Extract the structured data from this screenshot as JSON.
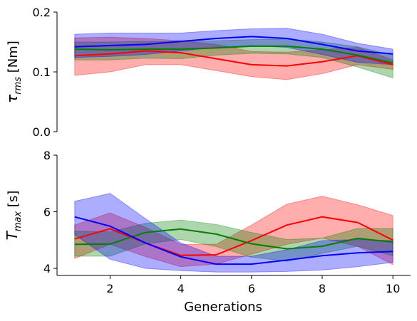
{
  "chart_data": [
    {
      "type": "line",
      "panel": "top",
      "ylabel_base": "τ",
      "ylabel_sub": "rms",
      "ylabel_unit": "[Nm]",
      "xlabel": "",
      "ylim": [
        0,
        0.2
      ],
      "yticks": [
        0,
        0.1,
        0.2
      ],
      "ytick_labels": [
        "0.0",
        "0.1",
        "0.2"
      ],
      "xlim": [
        0.5,
        10.5
      ],
      "x": [
        1,
        2,
        3,
        4,
        5,
        6,
        7,
        8,
        9,
        10
      ],
      "grid": false,
      "legend": "none",
      "series": [
        {
          "color": "#ff0000",
          "mean": [
            0.127,
            0.13,
            0.135,
            0.132,
            0.122,
            0.112,
            0.11,
            0.117,
            0.127,
            0.112
          ],
          "lower": [
            0.094,
            0.1,
            0.112,
            0.112,
            0.102,
            0.092,
            0.087,
            0.097,
            0.112,
            0.104
          ],
          "upper": [
            0.157,
            0.158,
            0.156,
            0.152,
            0.146,
            0.134,
            0.133,
            0.137,
            0.141,
            0.12
          ]
        },
        {
          "color": "#008000",
          "mean": [
            0.138,
            0.137,
            0.138,
            0.138,
            0.14,
            0.143,
            0.143,
            0.138,
            0.128,
            0.115
          ],
          "lower": [
            0.12,
            0.12,
            0.123,
            0.122,
            0.128,
            0.131,
            0.13,
            0.124,
            0.108,
            0.09
          ],
          "upper": [
            0.15,
            0.15,
            0.151,
            0.151,
            0.152,
            0.154,
            0.155,
            0.15,
            0.142,
            0.128
          ]
        },
        {
          "color": "#0000ff",
          "mean": [
            0.142,
            0.144,
            0.146,
            0.151,
            0.156,
            0.159,
            0.156,
            0.146,
            0.135,
            0.13
          ],
          "lower": [
            0.124,
            0.126,
            0.129,
            0.135,
            0.141,
            0.144,
            0.141,
            0.129,
            0.116,
            0.112
          ],
          "upper": [
            0.163,
            0.165,
            0.165,
            0.165,
            0.169,
            0.172,
            0.173,
            0.163,
            0.148,
            0.138
          ]
        }
      ]
    },
    {
      "type": "line",
      "panel": "bottom",
      "ylabel_base": "T",
      "ylabel_sub": "max",
      "ylabel_unit": "[s]",
      "xlabel": "Generations",
      "ylim": [
        3.75,
        8
      ],
      "yticks": [
        4,
        6,
        8
      ],
      "ytick_labels": [
        "4",
        "6",
        "8"
      ],
      "xlim": [
        0.5,
        10.5
      ],
      "xticks": [
        2,
        4,
        6,
        8,
        10
      ],
      "xtick_labels": [
        "2",
        "4",
        "6",
        "8",
        "10"
      ],
      "x": [
        1,
        2,
        3,
        4,
        5,
        6,
        7,
        8,
        9,
        10
      ],
      "grid": false,
      "legend": "none",
      "series": [
        {
          "color": "#ff0000",
          "mean": [
            5.04,
            5.4,
            4.9,
            4.46,
            4.48,
            4.98,
            5.53,
            5.82,
            5.62,
            5.0
          ],
          "lower": [
            4.35,
            4.85,
            4.42,
            4.06,
            4.15,
            4.5,
            4.85,
            5.07,
            4.78,
            4.13
          ],
          "upper": [
            5.53,
            5.96,
            5.45,
            4.85,
            4.85,
            5.53,
            6.27,
            6.55,
            6.25,
            5.87
          ]
        },
        {
          "color": "#008000",
          "mean": [
            4.85,
            4.86,
            5.27,
            5.39,
            5.21,
            4.87,
            4.69,
            4.78,
            5.06,
            4.93
          ],
          "lower": [
            4.43,
            4.43,
            4.87,
            5.02,
            4.77,
            4.4,
            4.25,
            4.53,
            4.78,
            4.45
          ],
          "upper": [
            5.31,
            5.29,
            5.59,
            5.71,
            5.55,
            5.27,
            5.02,
            5.07,
            5.41,
            5.41
          ]
        },
        {
          "color": "#0000ff",
          "mean": [
            5.82,
            5.49,
            4.9,
            4.41,
            4.15,
            4.15,
            4.29,
            4.45,
            4.55,
            4.6
          ],
          "lower": [
            5.19,
            4.32,
            4.0,
            3.92,
            3.87,
            3.87,
            3.89,
            3.94,
            4.06,
            4.21
          ],
          "upper": [
            6.37,
            6.65,
            5.76,
            4.9,
            4.43,
            4.43,
            4.66,
            4.98,
            5.02,
            4.98
          ]
        }
      ]
    }
  ]
}
